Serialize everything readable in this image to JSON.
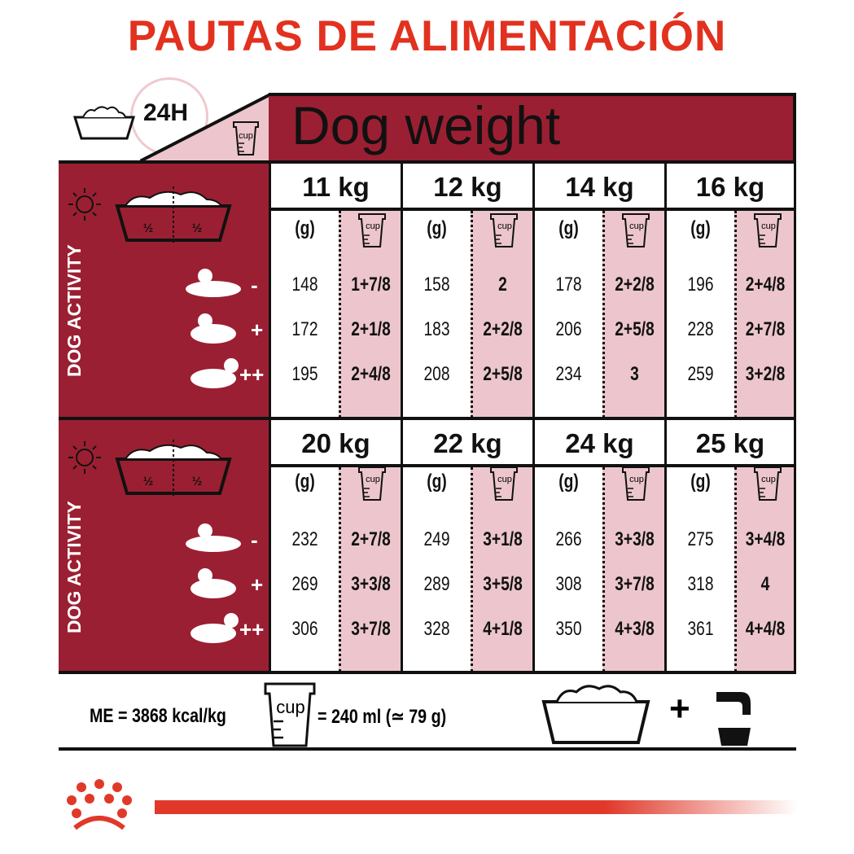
{
  "title": "PAUTAS DE ALIMENTACIÓN",
  "header": {
    "duration": "24H",
    "cup_label": "cup",
    "dog_weight": "Dog weight"
  },
  "side": {
    "activity_label": "DOG ACTIVITY",
    "half": "½",
    "activity_levels": [
      "-",
      "+",
      "++"
    ]
  },
  "units": {
    "grams": "(g)",
    "cup": "cup"
  },
  "colors": {
    "title": "#e2311f",
    "panel": "#9b1f32",
    "cup_column": "#ecc6cc"
  },
  "blocks": [
    {
      "weights": [
        {
          "kg": "11 kg",
          "grams": [
            "148",
            "172",
            "195"
          ],
          "cups": [
            "1+7/8",
            "2+1/8",
            "2+4/8"
          ]
        },
        {
          "kg": "12 kg",
          "grams": [
            "158",
            "183",
            "208"
          ],
          "cups": [
            "2",
            "2+2/8",
            "2+5/8"
          ]
        },
        {
          "kg": "14 kg",
          "grams": [
            "178",
            "206",
            "234"
          ],
          "cups": [
            "2+2/8",
            "2+5/8",
            "3"
          ]
        },
        {
          "kg": "16 kg",
          "grams": [
            "196",
            "228",
            "259"
          ],
          "cups": [
            "2+4/8",
            "2+7/8",
            "3+2/8"
          ]
        }
      ]
    },
    {
      "weights": [
        {
          "kg": "20 kg",
          "grams": [
            "232",
            "269",
            "306"
          ],
          "cups": [
            "2+7/8",
            "3+3/8",
            "3+7/8"
          ]
        },
        {
          "kg": "22 kg",
          "grams": [
            "249",
            "289",
            "328"
          ],
          "cups": [
            "3+1/8",
            "3+5/8",
            "4+1/8"
          ]
        },
        {
          "kg": "24 kg",
          "grams": [
            "266",
            "308",
            "350"
          ],
          "cups": [
            "3+3/8",
            "3+7/8",
            "4+3/8"
          ]
        },
        {
          "kg": "25 kg",
          "grams": [
            "275",
            "318",
            "361"
          ],
          "cups": [
            "3+4/8",
            "4",
            "4+4/8"
          ]
        }
      ]
    }
  ],
  "footer": {
    "energy": "ME = 3868 kcal/kg",
    "cup_label": "cup",
    "cup_equivalence": "= 240 ml (≃ 79 g)"
  }
}
